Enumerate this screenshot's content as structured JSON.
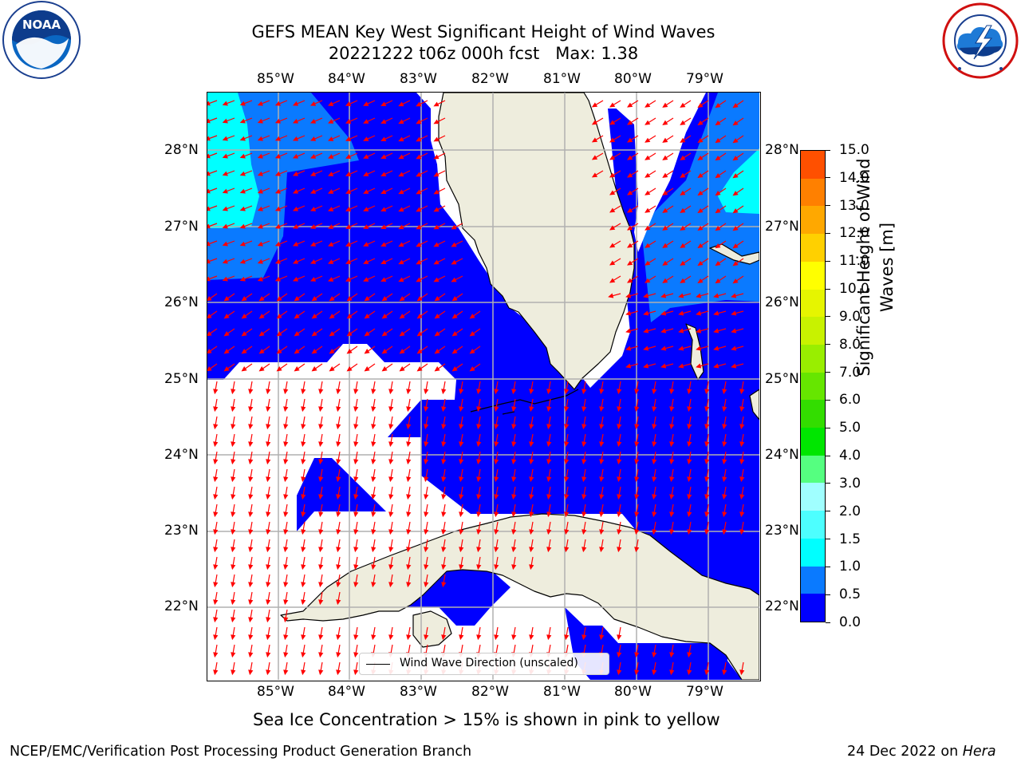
{
  "header": {
    "title_line1": "GEFS MEAN Key West Significant Height of Wind Waves",
    "title_line2": "20221222 t06z 000h fcst",
    "max_label": "Max: 1.38"
  },
  "logos": {
    "left": {
      "icon": "noaa-logo",
      "text": "NOAA",
      "ring_text": "NATIONAL OCEANIC AND ATMOSPHERIC ADMINISTRATION · U.S. DEPARTMENT OF COMMERCE"
    },
    "right": {
      "icon": "nws-logo",
      "ring_text": "NATIONAL WEATHER SERVICE"
    }
  },
  "map": {
    "lon_labels": [
      "85°W",
      "84°W",
      "83°W",
      "82°W",
      "81°W",
      "80°W",
      "79°W"
    ],
    "lat_labels": [
      "28°N",
      "27°N",
      "26°N",
      "25°N",
      "24°N",
      "23°N",
      "22°N"
    ],
    "extent": {
      "lon_min": -86.0,
      "lon_max": -78.25,
      "lat_min": 21.0,
      "lat_max": 28.75
    },
    "colors": {
      "land": "#eeeddd",
      "coast": "#000000",
      "grid": "#b0b0b0",
      "arrow": "#ff0000"
    },
    "legend_label": "Wind Wave Direction (unscaled)"
  },
  "colorbar": {
    "label": "Significant Height of Wind Waves [m]",
    "ticks": [
      "15.0",
      "14.0",
      "13.0",
      "12.0",
      "11.0",
      "10.0",
      "9.0",
      "8.0",
      "7.0",
      "6.0",
      "5.0",
      "4.0",
      "3.0",
      "2.0",
      "1.5",
      "1.0",
      "0.5",
      "0.0"
    ],
    "colors_bottom_to_top": [
      "#0000ff",
      "#0a7aff",
      "#00ffff",
      "#4dffff",
      "#a0ffff",
      "#55ff80",
      "#00e600",
      "#33dd00",
      "#66e600",
      "#99ee00",
      "#c8f200",
      "#e6f500",
      "#ffff00",
      "#ffd000",
      "#ffa800",
      "#ff8000",
      "#ff5000",
      "#ff2000",
      "#ff0000"
    ]
  },
  "subtitle": "Sea Ice Concentration > 15% is shown in pink to yellow",
  "footer": {
    "left": "NCEP/EMC/Verification Post Processing Product Generation Branch",
    "date": "24 Dec 2022 on",
    "host": "Hera"
  }
}
